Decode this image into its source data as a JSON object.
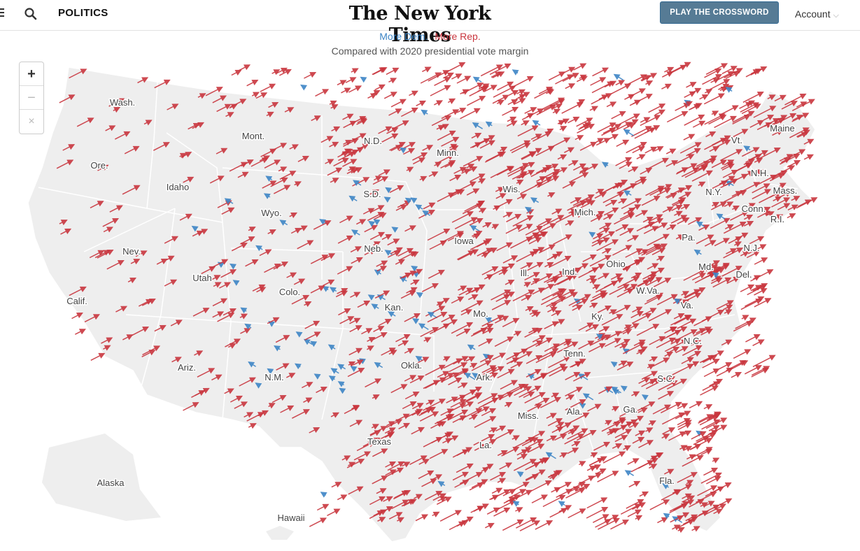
{
  "header": {
    "section": "POLITICS",
    "logo": "The New York Times",
    "crossword_button": "PLAY THE CROSSWORD",
    "account": "Account"
  },
  "legend": {
    "dem_label": "More Dem.",
    "rep_label": "More Rep.",
    "subtitle": "Compared with 2020 presidential vote margin"
  },
  "zoom": {
    "in": "+",
    "out": "−",
    "reset": "×"
  },
  "colors": {
    "dem": "#3d85c6",
    "rep": "#c9363e",
    "land": "#eeeeee",
    "border": "#ffffff"
  },
  "states": [
    "Wash.",
    "Mont.",
    "N.D.",
    "Minn.",
    "Maine",
    "Vt.",
    "Ore.",
    "Idaho",
    "N.H.",
    "Wis.",
    "N.Y.",
    "Mass.",
    "S.D.",
    "Wyo.",
    "Mich.",
    "Conn.",
    "R.I.",
    "Pa.",
    "Nev.",
    "Iowa",
    "Neb.",
    "N.J.",
    "Ohio",
    "Utah",
    "Ill.",
    "Ind.",
    "Md.",
    "Del.",
    "Colo.",
    "W.Va.",
    "Calif.",
    "Va.",
    "Kan.",
    "Mo.",
    "Ky.",
    "N.C.",
    "Tenn.",
    "Okla.",
    "Ariz.",
    "N.M.",
    "Ark.",
    "S.C.",
    "Ala.",
    "Ga.",
    "Miss.",
    "Texas",
    "La.",
    "Fla.",
    "Alaska",
    "Hawaii"
  ]
}
